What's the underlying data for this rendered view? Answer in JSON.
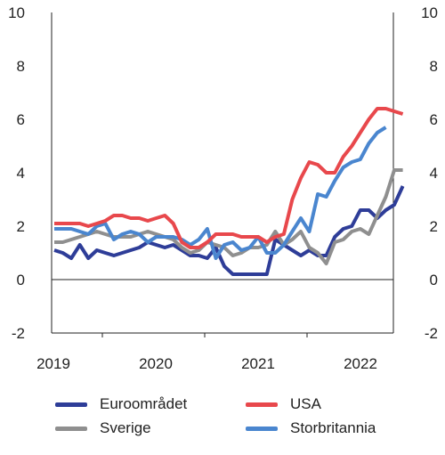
{
  "chart_data": {
    "type": "line",
    "x_start": "2019-01",
    "x_step": "month",
    "x_tick_labels": [
      "2019",
      "2020",
      "2021",
      "2022"
    ],
    "ylim": [
      -2,
      10
    ],
    "y_ticks": [
      "10",
      "8",
      "6",
      "4",
      "2",
      "0",
      "-2"
    ],
    "grid": "horizontal, at 0 only",
    "legend_placement": "bottom",
    "series": [
      {
        "name": "Euroområdet",
        "color": "#2e3d98",
        "values": [
          1.1,
          1.0,
          0.8,
          1.3,
          0.8,
          1.1,
          1.0,
          0.9,
          1.0,
          1.1,
          1.2,
          1.4,
          1.3,
          1.2,
          1.3,
          1.1,
          0.9,
          0.9,
          0.8,
          1.2,
          0.5,
          0.2,
          0.2,
          0.2,
          0.2,
          0.2,
          1.5,
          1.3,
          1.1,
          0.9,
          1.1,
          0.9,
          0.9,
          1.6,
          1.9,
          2.0,
          2.6,
          2.6,
          2.3,
          2.6,
          2.8,
          3.5
        ]
      },
      {
        "name": "USA",
        "color": "#e8484c",
        "values": [
          2.1,
          2.1,
          2.1,
          2.1,
          2.0,
          2.1,
          2.2,
          2.4,
          2.4,
          2.3,
          2.3,
          2.2,
          2.3,
          2.4,
          2.1,
          1.4,
          1.2,
          1.2,
          1.4,
          1.7,
          1.7,
          1.7,
          1.6,
          1.6,
          1.6,
          1.4,
          1.6,
          1.7,
          3.0,
          3.8,
          4.4,
          4.3,
          4.0,
          4.0,
          4.6,
          5.0,
          5.5,
          6.0,
          6.4,
          6.4,
          6.3,
          6.2
        ]
      },
      {
        "name": "Sverige",
        "color": "#8f8f8f",
        "values": [
          1.4,
          1.4,
          1.5,
          1.6,
          1.7,
          1.8,
          1.7,
          1.6,
          1.6,
          1.6,
          1.7,
          1.8,
          1.7,
          1.6,
          1.5,
          1.2,
          1.0,
          1.1,
          1.4,
          1.3,
          1.2,
          0.9,
          1.0,
          1.2,
          1.2,
          1.3,
          1.8,
          1.3,
          1.5,
          1.8,
          1.2,
          1.0,
          0.6,
          1.4,
          1.5,
          1.8,
          1.9,
          1.7,
          2.4,
          3.1,
          4.1,
          4.1
        ]
      },
      {
        "name": "Storbritannia",
        "color": "#4a86cf",
        "values": [
          1.9,
          1.9,
          1.9,
          1.8,
          1.7,
          2.0,
          2.1,
          1.5,
          1.7,
          1.8,
          1.7,
          1.4,
          1.6,
          1.6,
          1.6,
          1.5,
          1.3,
          1.5,
          1.9,
          0.8,
          1.3,
          1.4,
          1.1,
          1.2,
          1.6,
          1.0,
          1.0,
          1.3,
          1.8,
          2.3,
          1.8,
          3.2,
          3.1,
          3.7,
          4.2,
          4.4,
          4.5,
          5.1,
          5.5,
          5.7
        ]
      }
    ]
  },
  "legend": [
    {
      "label": "Euroområdet",
      "color": "#2e3d98"
    },
    {
      "label": "USA",
      "color": "#e8484c"
    },
    {
      "label": "Sverige",
      "color": "#8f8f8f"
    },
    {
      "label": "Storbritannia",
      "color": "#4a86cf"
    }
  ]
}
